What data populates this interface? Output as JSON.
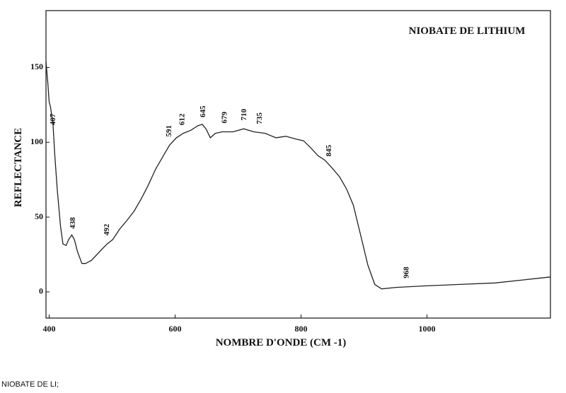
{
  "chart_data": {
    "type": "line",
    "title": "NIOBATE DE LITHIUM",
    "xlabel": "NOMBRE D'ONDE (CM -1)",
    "ylabel": "REFLECTANCE",
    "x": [
      395,
      398,
      400,
      402,
      406,
      409,
      413,
      418,
      422,
      427,
      431,
      436,
      440,
      445,
      452,
      458,
      467,
      476,
      485,
      492,
      501,
      512,
      524,
      535,
      546,
      557,
      569,
      580,
      591,
      602,
      613,
      625,
      636,
      643,
      649,
      656,
      664,
      675,
      692,
      709,
      725,
      743,
      760,
      776,
      793,
      804,
      816,
      827,
      838,
      849,
      861,
      872,
      883,
      894,
      906,
      917,
      928,
      951,
      996,
      1052,
      1108,
      1153,
      1196
    ],
    "values": [
      154,
      139,
      127,
      124,
      113,
      91,
      68,
      44,
      32,
      31,
      35,
      38,
      35,
      27,
      19,
      19,
      21,
      25,
      29,
      32,
      35,
      42,
      48,
      54,
      62,
      71,
      82,
      90,
      98,
      103,
      106,
      108,
      111,
      112,
      109,
      103,
      106,
      107,
      107,
      109,
      107,
      106,
      103,
      104,
      102,
      101,
      96,
      91,
      88,
      83,
      77,
      69,
      58,
      39,
      18,
      5,
      2,
      3,
      4,
      5,
      6,
      8,
      10
    ],
    "color": "#222222",
    "xlim": [
      395,
      1196
    ],
    "ylim": [
      -17.5,
      188
    ],
    "xticks": [
      400,
      600,
      800,
      1000
    ],
    "yticks": [
      0,
      50,
      100,
      150
    ],
    "annotations": [
      407,
      438,
      492,
      591,
      612,
      645,
      679,
      710,
      735,
      968,
      845
    ]
  },
  "caption": "NIOBATE DE LI;"
}
